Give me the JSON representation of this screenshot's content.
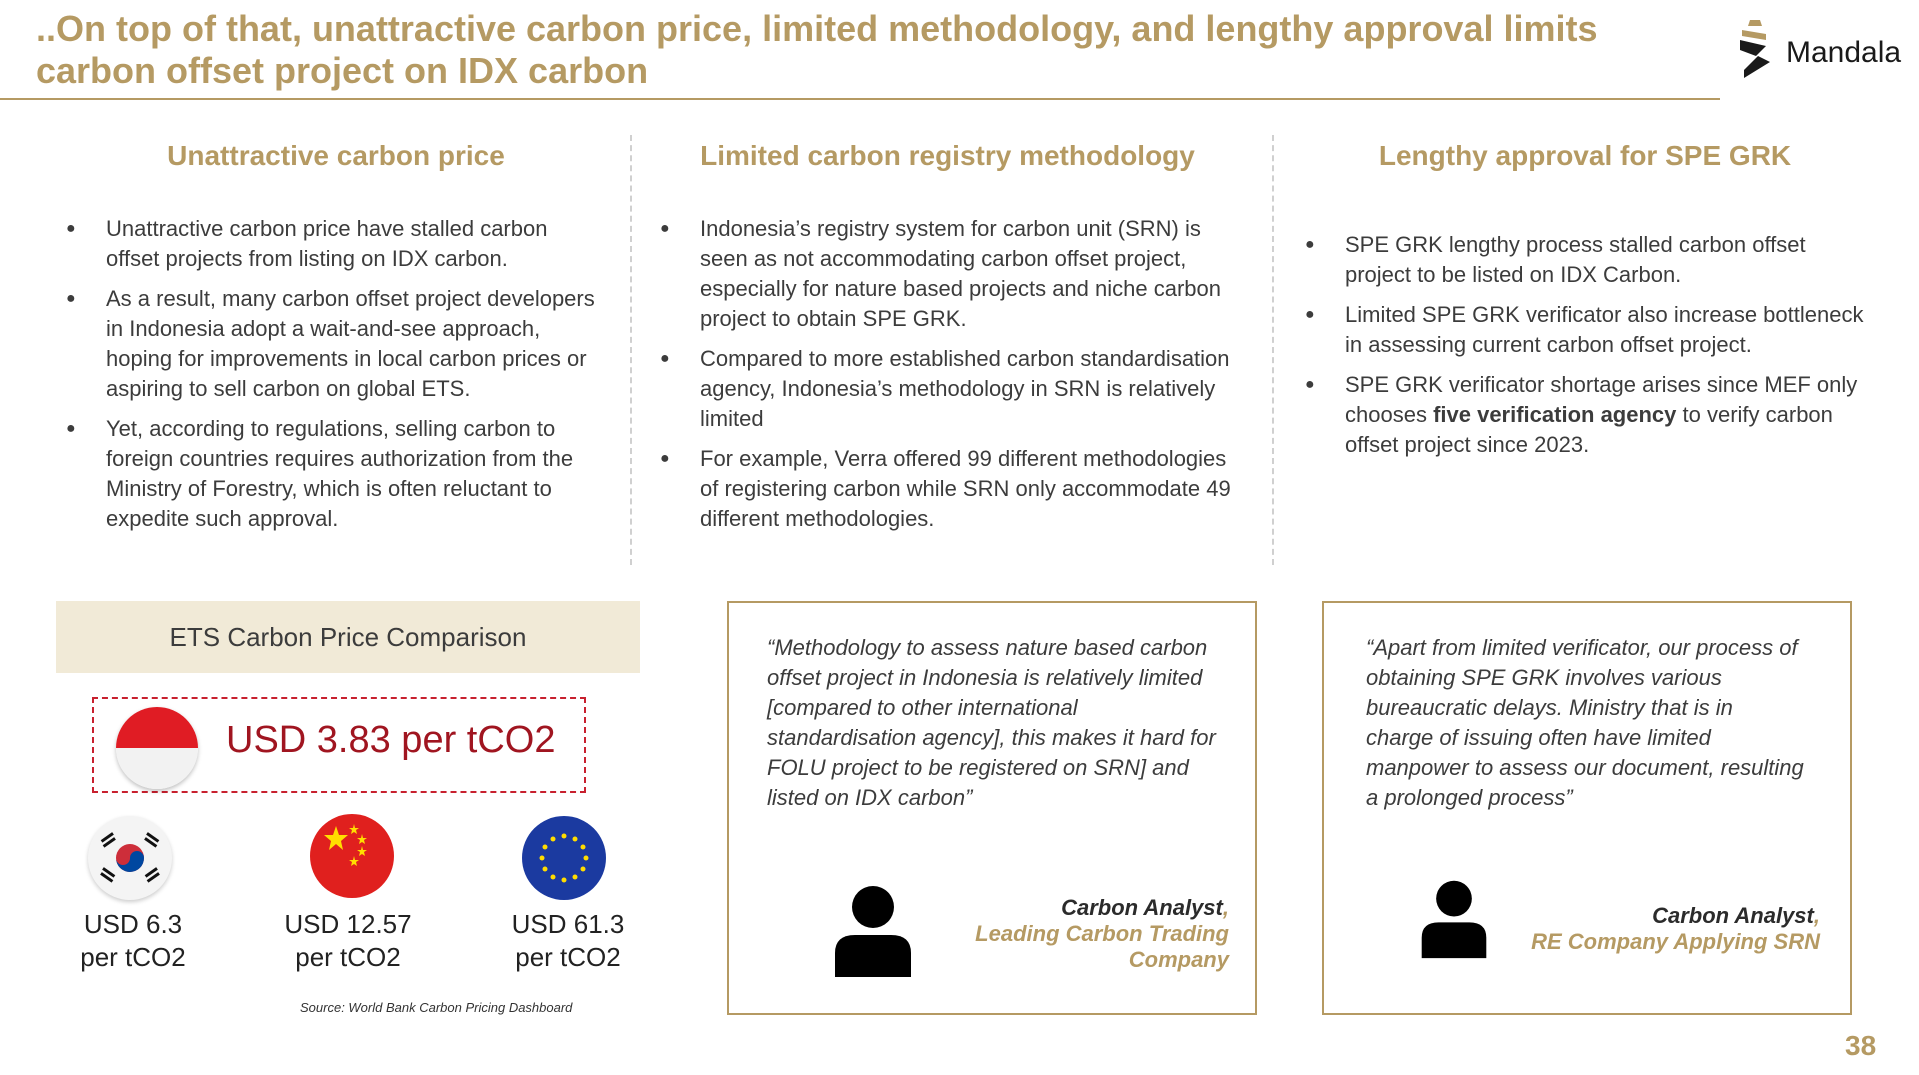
{
  "header": {
    "title": "..On top of that, unattractive carbon price, limited methodology, and lengthy approval limits carbon offset project on IDX carbon",
    "brand": "Mandala"
  },
  "columns": [
    {
      "heading": "Unattractive carbon price",
      "bullets": [
        "Unattractive carbon price have stalled carbon offset projects from listing on IDX carbon.",
        "As a result, many carbon offset project developers in Indonesia adopt a wait-and-see approach, hoping for improvements in local carbon prices or aspiring to sell carbon on global ETS.",
        "Yet, according to regulations, selling carbon to foreign countries requires authorization from the Ministry of Forestry, which is often reluctant to expedite such approval."
      ]
    },
    {
      "heading": "Limited carbon registry methodology",
      "bullets": [
        "Indonesia’s registry system for carbon unit (SRN) is seen as not accommodating carbon offset project, especially for nature based projects and niche carbon project to obtain SPE GRK.",
        "Compared to more established carbon standardisation agency, Indonesia’s methodology in SRN is relatively limited",
        "For example, Verra offered 99 different methodologies of  registering carbon while SRN only accommodate 49 different methodologies."
      ]
    },
    {
      "heading": "Lengthy approval for SPE GRK",
      "bullets": [
        "SPE GRK lengthy process stalled carbon offset project to be listed on IDX Carbon.",
        "Limited SPE GRK verificator also increase bottleneck in assessing current carbon offset project."
      ],
      "bullet3_pre": "SPE GRK verificator shortage arises since MEF only chooses ",
      "bullet3_bold": "five verification agency",
      "bullet3_post": " to verify carbon offset project since 2023."
    }
  ],
  "ets": {
    "heading": "ETS Carbon Price Comparison",
    "indonesia_price": "USD 3.83 per tCO2",
    "prices": [
      {
        "flag": "south-korea-flag",
        "line1": "USD 6.3",
        "line2": "per tCO2"
      },
      {
        "flag": "china-flag",
        "line1": "USD 12.57",
        "line2": "per tCO2"
      },
      {
        "flag": "eu-flag",
        "line1": "USD 61.3",
        "line2": "per tCO2"
      }
    ],
    "source": "Source: World Bank Carbon Pricing Dashboard"
  },
  "quotes": [
    {
      "text": "“Methodology to assess nature based carbon offset project in Indonesia is relatively limited [compared to other international standardisation agency], this makes it hard for FOLU project to be registered on SRN] and listed on IDX carbon”",
      "role": "Carbon Analyst",
      "org": "Leading Carbon Trading Company"
    },
    {
      "text": "“Apart from limited verificator, our process of obtaining SPE GRK involves various bureaucratic delays. Ministry that is in charge of issuing often have limited manpower to assess our document, resulting a prolonged process”",
      "role": "Carbon Analyst",
      "org": "RE Company Applying SRN"
    }
  ],
  "colors": {
    "accent": "#b59a63",
    "indonesia_red": "#c8202e"
  },
  "page_number": "38"
}
